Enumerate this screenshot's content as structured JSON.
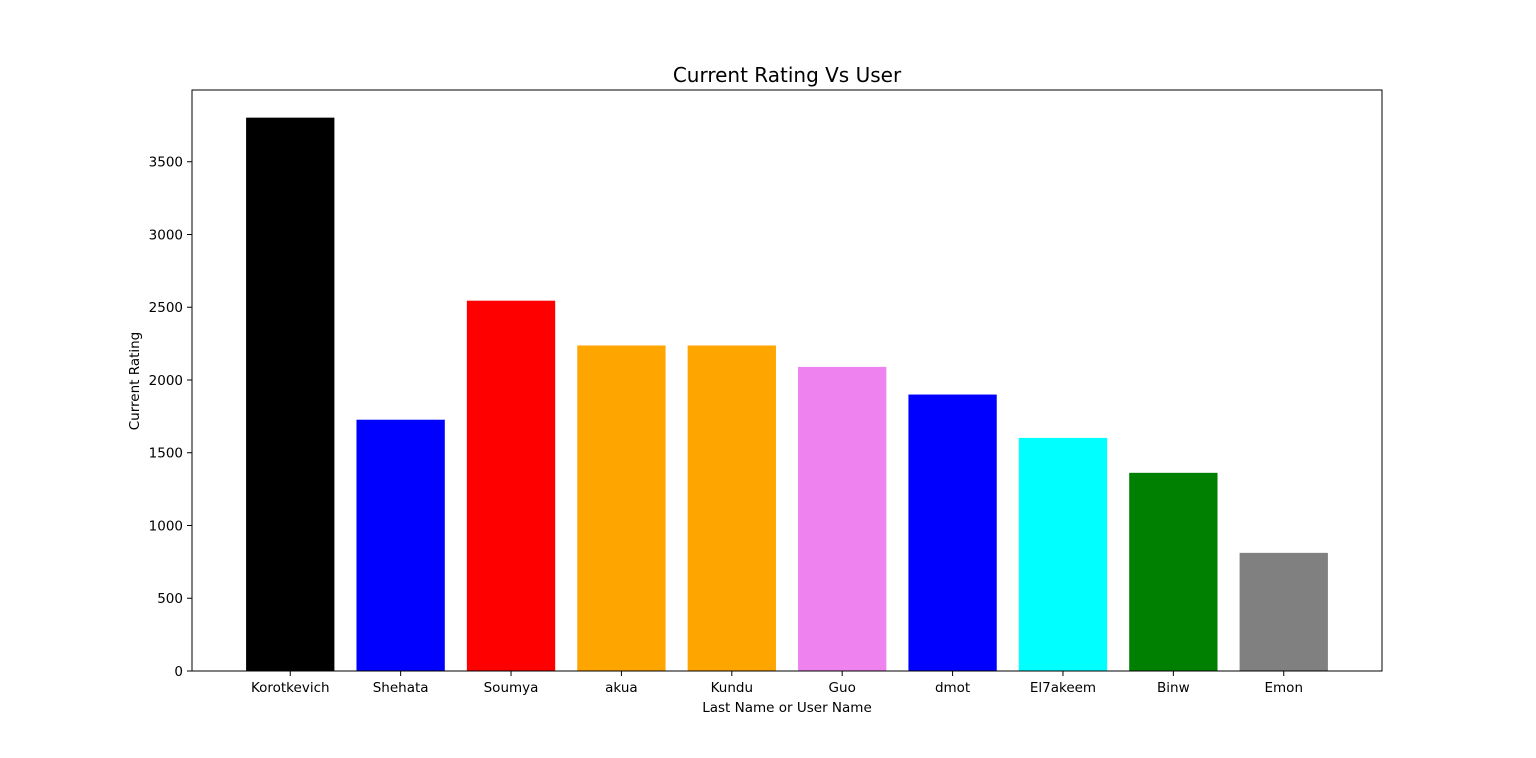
{
  "chart_data": {
    "type": "bar",
    "title": "Current Rating Vs User",
    "xlabel": "Last Name or User Name",
    "ylabel": "Current Rating",
    "categories": [
      "Korotkevich",
      "Shehata",
      "Soumya",
      "akua",
      "Kundu",
      "Guo",
      "dmot",
      "El7akeem",
      "Binw",
      "Emon"
    ],
    "values": [
      3803,
      1727,
      2545,
      2237,
      2237,
      2090,
      1900,
      1602,
      1362,
      812
    ],
    "colors": [
      "#000000",
      "#0000ff",
      "#ff0000",
      "#ffa500",
      "#ffa500",
      "#ee82ee",
      "#0000ff",
      "#00ffff",
      "#008000",
      "#808080"
    ],
    "yticks": [
      0,
      500,
      1000,
      1500,
      2000,
      2500,
      3000,
      3500
    ],
    "ytick_labels": [
      "0",
      "500",
      "1000",
      "1500",
      "2000",
      "2500",
      "3000",
      "3500"
    ],
    "ylim": [
      0,
      3993
    ],
    "grid": false,
    "legend": "none"
  }
}
